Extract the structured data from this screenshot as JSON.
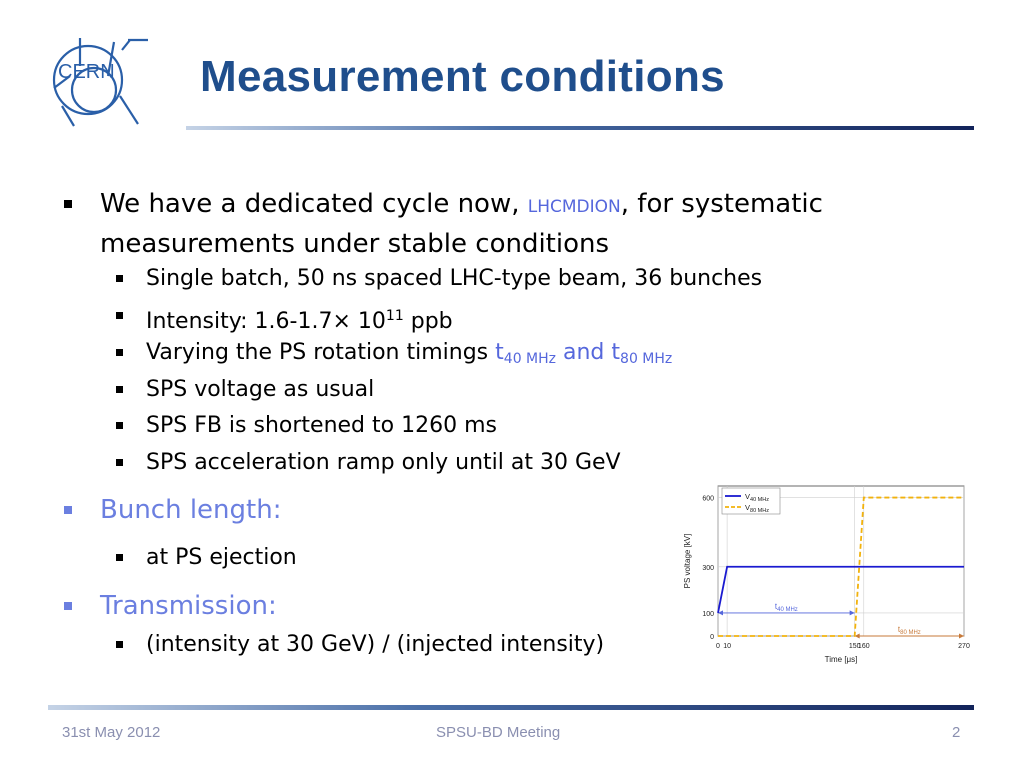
{
  "logo": {
    "text": "CERN"
  },
  "title": "Measurement conditions",
  "bullets": {
    "b1_pre": "We have a dedicated cycle now, ",
    "b1_code": "LHCMDION",
    "b1_post": ", for systematic measurements under stable conditions",
    "sub1": "Single batch, 50 ns spaced LHC-type beam, 36 bunches",
    "sub2_pre": "Intensity: 1.6-1.7",
    "sub2_times": "×",
    "sub2_mid": " 10",
    "sub2_exp": "11",
    "sub2_post": " ppb",
    "sub3_pre": "Varying the PS rotation timings ",
    "sub3_t1": "t",
    "sub3_t1sub": "40 MHz",
    "sub3_and": " and t",
    "sub3_t2sub": "80 MHz",
    "sub4": "SPS voltage as usual",
    "sub5": "SPS FB is shortened to 1260 ms",
    "sub6": "SPS acceleration ramp only until at 30 GeV",
    "bunch_length": "Bunch length:",
    "bunch_sub": "at PS ejection",
    "transmission": "Transmission:",
    "trans_sub": "(intensity at 30 GeV) / (injected intensity)"
  },
  "footer": {
    "date": "31st May 2012",
    "meeting": "SPSU-BD Meeting",
    "page": "2"
  },
  "colors": {
    "title": "#1f4e8c",
    "accent": "#6b7fe0",
    "v40": "#1a1ad0",
    "v80": "#f2b20c",
    "t80": "#c77a3a"
  },
  "chart_data": {
    "type": "line",
    "xlabel": "Time [μs]",
    "ylabel": "PS voltage [kV]",
    "xlim": [
      0,
      270
    ],
    "ylim": [
      0,
      650
    ],
    "x_ticks": [
      "0",
      "10",
      "150",
      "160",
      "270"
    ],
    "y_ticks": [
      "0",
      "100",
      "300",
      "600"
    ],
    "x_tick_values": [
      0,
      10,
      150,
      160,
      270
    ],
    "y_tick_values": [
      0,
      100,
      300,
      600
    ],
    "series": [
      {
        "name": "V",
        "name_sub": "40 MHz",
        "color": "#1a1ad0",
        "dash": false,
        "x": [
          0,
          10,
          270
        ],
        "y": [
          100,
          300,
          300
        ]
      },
      {
        "name": "V",
        "name_sub": "80 MHz",
        "color": "#f2b20c",
        "dash": true,
        "x": [
          0,
          150,
          160,
          270
        ],
        "y": [
          0,
          0,
          600,
          600
        ]
      }
    ],
    "annotations": [
      {
        "label": "t",
        "label_sub": "40 MHz",
        "x_from": 0,
        "x_to": 150,
        "y": 100,
        "color": "#5567dc"
      },
      {
        "label": "t",
        "label_sub": "80 MHz",
        "x_from": 150,
        "x_to": 270,
        "y": 0,
        "color": "#c77a3a"
      }
    ]
  }
}
